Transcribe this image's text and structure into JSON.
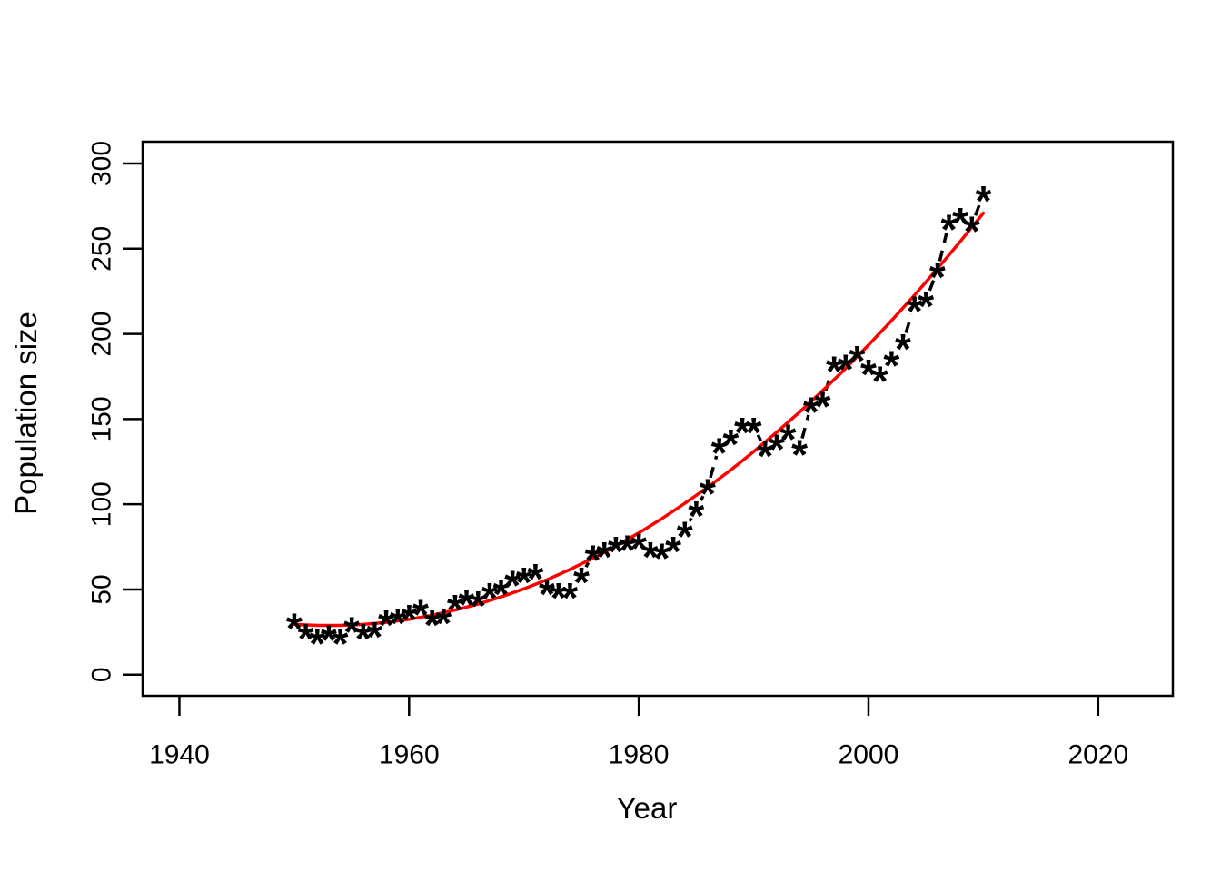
{
  "figure": {
    "background": "#ffffff"
  },
  "chart_data": {
    "type": "scatter",
    "title": "",
    "xlabel": "Year",
    "ylabel": "Population size",
    "x_ticks": [
      1940,
      1960,
      1980,
      2000,
      2020
    ],
    "y_ticks": [
      0,
      50,
      100,
      150,
      200,
      250,
      300
    ],
    "xlim": [
      1936.8,
      2026.5
    ],
    "ylim": [
      -12.4,
      312.8
    ],
    "grid": false,
    "legend": "none",
    "series": [
      {
        "name": "observed-population",
        "style": "points-with-dashed-line",
        "marker": "*",
        "line_style": "dashed",
        "color": "#000000",
        "x": [
          1950,
          1951,
          1952,
          1953,
          1954,
          1955,
          1956,
          1957,
          1958,
          1959,
          1960,
          1961,
          1962,
          1963,
          1964,
          1965,
          1966,
          1967,
          1968,
          1969,
          1970,
          1971,
          1972,
          1973,
          1974,
          1975,
          1976,
          1977,
          1978,
          1979,
          1980,
          1981,
          1982,
          1983,
          1984,
          1985,
          1986,
          1987,
          1988,
          1989,
          1990,
          1991,
          1992,
          1993,
          1994,
          1995,
          1996,
          1997,
          1998,
          1999,
          2000,
          2001,
          2002,
          2003,
          2004,
          2005,
          2006,
          2007,
          2008,
          2009,
          2010
        ],
        "y": [
          31,
          25,
          22,
          24,
          22,
          29,
          25,
          26,
          33,
          34,
          36,
          39,
          33,
          34,
          42,
          45,
          44,
          49,
          51,
          56,
          58,
          60,
          51,
          49,
          49,
          58,
          71,
          73,
          76,
          77,
          78,
          73,
          72,
          76,
          85,
          97,
          110,
          134,
          139,
          146,
          146,
          132,
          136,
          142,
          133,
          158,
          161,
          182,
          183,
          188,
          180,
          176,
          185,
          195,
          217,
          220,
          237,
          265,
          269,
          264,
          282
        ]
      },
      {
        "name": "fitted-trend-curve",
        "style": "smooth-line",
        "line_style": "solid",
        "color": "#ff0000",
        "x": [
          1950,
          1952,
          1954,
          1956,
          1958,
          1960,
          1962,
          1964,
          1966,
          1968,
          1970,
          1972,
          1974,
          1976,
          1978,
          1980,
          1982,
          1984,
          1986,
          1988,
          1990,
          1992,
          1994,
          1996,
          1998,
          2000,
          2002,
          2004,
          2006,
          2008,
          2010
        ],
        "y": [
          29.5,
          28.9,
          28.9,
          29.5,
          30.7,
          32.5,
          34.9,
          37.9,
          41.4,
          45.6,
          50.4,
          55.7,
          61.7,
          68.3,
          75.4,
          83.2,
          91.5,
          100.5,
          110.0,
          120.1,
          130.9,
          142.2,
          154.1,
          166.6,
          179.7,
          193.5,
          207.8,
          222.7,
          238.2,
          254.3,
          270.9
        ]
      }
    ]
  }
}
